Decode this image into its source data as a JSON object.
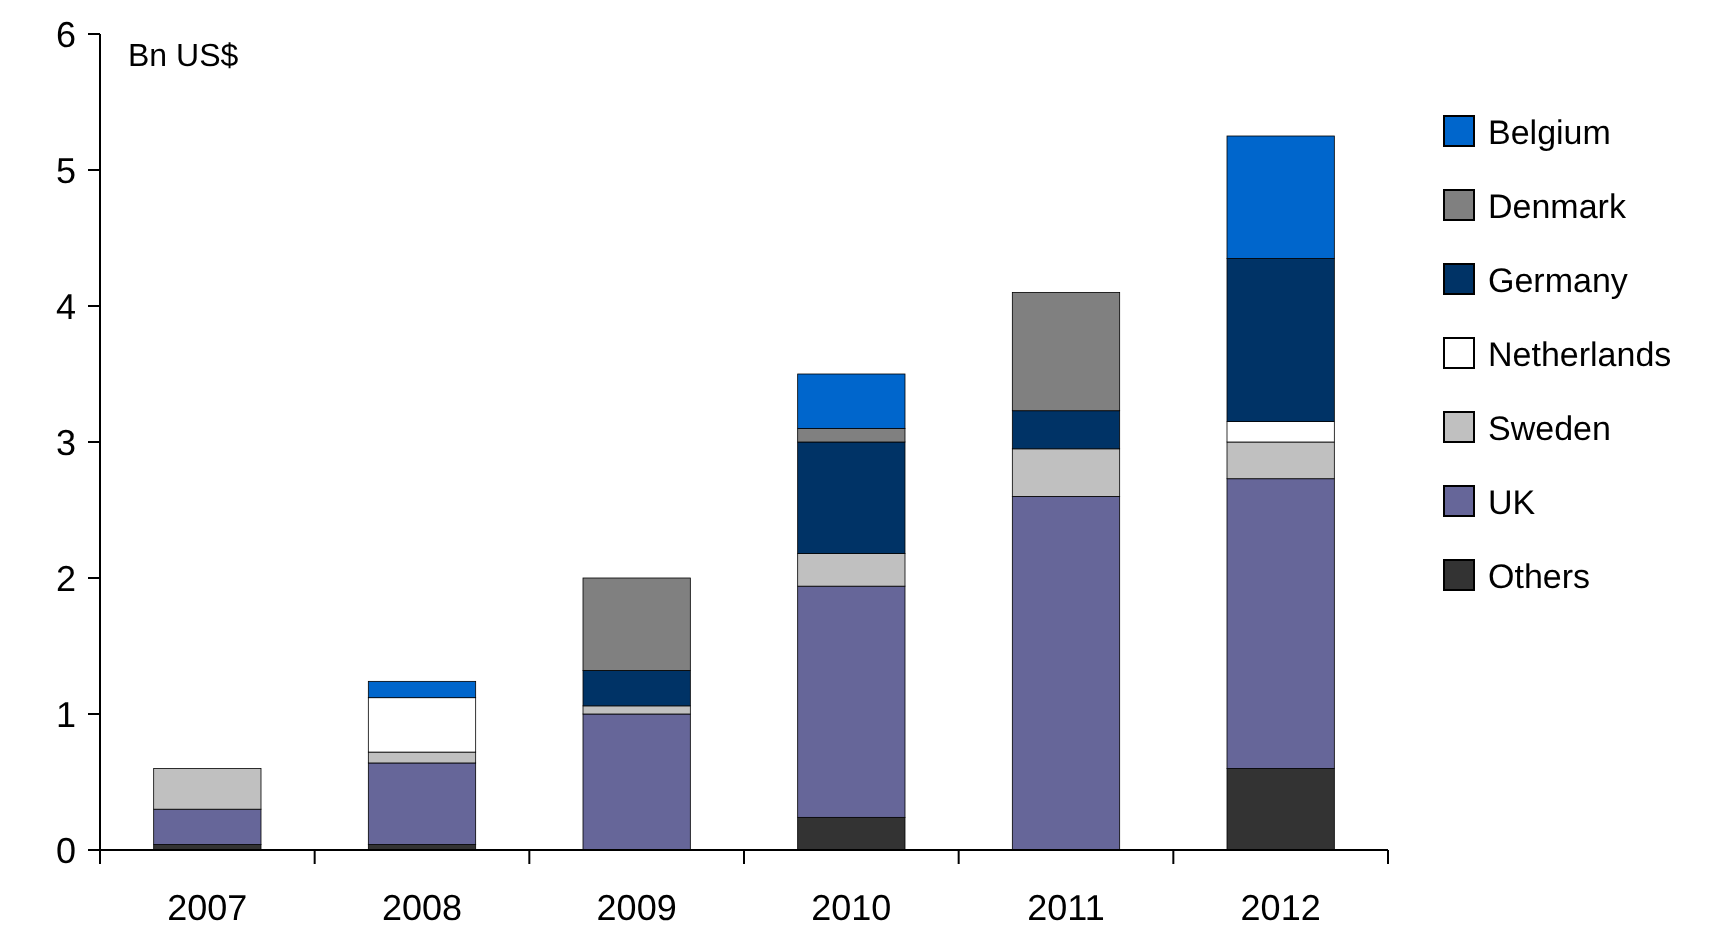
{
  "chart_data": {
    "type": "bar",
    "stacked": true,
    "ylabel": "Bn US$",
    "categories": [
      "2007",
      "2008",
      "2009",
      "2010",
      "2011",
      "2012"
    ],
    "ylim": [
      0,
      6
    ],
    "yticks": [
      0,
      1,
      2,
      3,
      4,
      5,
      6
    ],
    "grid": false,
    "legend": "right",
    "series": [
      {
        "name": "Others",
        "color": "#333333",
        "values": [
          0.04,
          0.04,
          0,
          0.24,
          0,
          0.6
        ]
      },
      {
        "name": "UK",
        "color": "#666699",
        "values": [
          0.26,
          0.6,
          1.0,
          1.7,
          2.6,
          2.13
        ]
      },
      {
        "name": "Sweden",
        "color": "#c0c0c0",
        "values": [
          0.3,
          0.08,
          0.06,
          0.24,
          0.35,
          0.27
        ]
      },
      {
        "name": "Netherlands",
        "color": "#ffffff",
        "values": [
          0,
          0.4,
          0,
          0,
          0,
          0.15
        ]
      },
      {
        "name": "Germany",
        "color": "#003366",
        "values": [
          0,
          0,
          0.26,
          0.82,
          0.28,
          1.2
        ]
      },
      {
        "name": "Denmark",
        "color": "#808080",
        "values": [
          0,
          0,
          0.68,
          0.1,
          0.87,
          0
        ]
      },
      {
        "name": "Belgium",
        "color": "#0066cc",
        "values": [
          0,
          0.12,
          0,
          0.4,
          0,
          0.9
        ]
      }
    ]
  }
}
